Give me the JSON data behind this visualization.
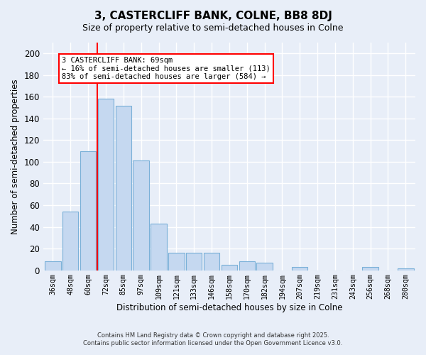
{
  "title": "3, CASTERCLIFF BANK, COLNE, BB8 8DJ",
  "subtitle": "Size of property relative to semi-detached houses in Colne",
  "xlabel": "Distribution of semi-detached houses by size in Colne",
  "ylabel": "Number of semi-detached properties",
  "bar_labels": [
    "36sqm",
    "48sqm",
    "60sqm",
    "72sqm",
    "85sqm",
    "97sqm",
    "109sqm",
    "121sqm",
    "133sqm",
    "146sqm",
    "158sqm",
    "170sqm",
    "182sqm",
    "194sqm",
    "207sqm",
    "219sqm",
    "231sqm",
    "243sqm",
    "256sqm",
    "268sqm",
    "280sqm"
  ],
  "bar_values": [
    8,
    54,
    110,
    158,
    152,
    101,
    43,
    16,
    16,
    16,
    5,
    8,
    7,
    0,
    3,
    0,
    0,
    0,
    3,
    0,
    2
  ],
  "bar_color": "#c5d8f0",
  "bar_edge_color": "#7ab0d8",
  "ylim": [
    0,
    210
  ],
  "yticks": [
    0,
    20,
    40,
    60,
    80,
    100,
    120,
    140,
    160,
    180,
    200
  ],
  "vline_color": "red",
  "vline_pos": 2.5,
  "annotation_title": "3 CASTERCLIFF BANK: 69sqm",
  "annotation_line1": "← 16% of semi-detached houses are smaller (113)",
  "annotation_line2": "83% of semi-detached houses are larger (584) →",
  "annotation_box_color": "white",
  "annotation_box_edge": "red",
  "footer1": "Contains HM Land Registry data © Crown copyright and database right 2025.",
  "footer2": "Contains public sector information licensed under the Open Government Licence v3.0.",
  "background_color": "#e8eef8",
  "grid_color": "white"
}
